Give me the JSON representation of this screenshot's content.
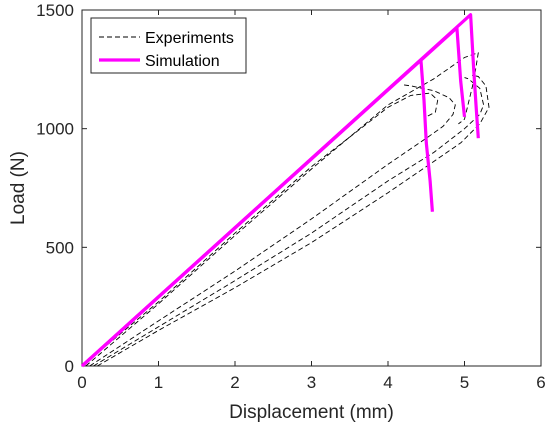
{
  "chart_data": {
    "type": "line",
    "title": "",
    "xlabel": "Displacement (mm)",
    "ylabel": "Load (N)",
    "xlim": [
      0,
      6
    ],
    "ylim": [
      0,
      1500
    ],
    "xticks": [
      "0",
      "1",
      "2",
      "3",
      "4",
      "5",
      "6"
    ],
    "yticks": [
      "0",
      "500",
      "1000",
      "1500"
    ],
    "grid": false,
    "legend_position": "top-left",
    "legend": [
      "Experiments",
      "Simulation"
    ],
    "series": [
      {
        "name": "Experiments",
        "style": "dashed",
        "color": "#000000",
        "curves": [
          [
            [
              0.0,
              0.0
            ],
            [
              1.0,
              270
            ],
            [
              2.0,
              560
            ],
            [
              3.0,
              840
            ],
            [
              3.5,
              965
            ],
            [
              4.0,
              1090
            ],
            [
              4.3,
              1140
            ],
            [
              4.55,
              1150
            ],
            [
              4.65,
              1120
            ],
            [
              4.62,
              1070
            ],
            [
              4.5,
              1050
            ]
          ],
          [
            [
              0.05,
              0.0
            ],
            [
              1.0,
              262
            ],
            [
              2.0,
              550
            ],
            [
              3.0,
              830
            ],
            [
              4.0,
              1100
            ],
            [
              4.6,
              1210
            ],
            [
              5.0,
              1300
            ],
            [
              5.18,
              1320
            ],
            [
              5.12,
              1200
            ],
            [
              5.0,
              1040
            ],
            [
              4.92,
              1020
            ]
          ],
          [
            [
              0.1,
              0.0
            ],
            [
              1.0,
              190
            ],
            [
              2.0,
              400
            ],
            [
              3.0,
              620
            ],
            [
              4.0,
              850
            ],
            [
              4.5,
              960
            ],
            [
              4.72,
              1010
            ],
            [
              4.85,
              1060
            ],
            [
              4.88,
              1100
            ],
            [
              4.8,
              1130
            ],
            [
              4.6,
              1160
            ],
            [
              4.3,
              1180
            ],
            [
              4.2,
              1185
            ]
          ],
          [
            [
              0.15,
              0.0
            ],
            [
              1.0,
              165
            ],
            [
              2.0,
              360
            ],
            [
              3.0,
              560
            ],
            [
              4.0,
              780
            ],
            [
              4.6,
              900
            ],
            [
              5.0,
              1000
            ],
            [
              5.2,
              1060
            ],
            [
              5.25,
              1100
            ],
            [
              5.2,
              1170
            ],
            [
              5.05,
              1210
            ],
            [
              5.0,
              1215
            ]
          ],
          [
            [
              0.2,
              0.0
            ],
            [
              1.0,
              150
            ],
            [
              2.0,
              330
            ],
            [
              3.0,
              520
            ],
            [
              4.0,
              730
            ],
            [
              4.5,
              840
            ],
            [
              4.95,
              940
            ],
            [
              5.2,
              1020
            ],
            [
              5.32,
              1090
            ],
            [
              5.28,
              1180
            ],
            [
              5.18,
              1220
            ],
            [
              5.1,
              1225
            ]
          ]
        ]
      },
      {
        "name": "Simulation",
        "style": "solid",
        "color": "#ff00ff",
        "curves": [
          [
            [
              0.0,
              0.0
            ],
            [
              4.43,
              1290
            ],
            [
              4.47,
              1120
            ],
            [
              4.5,
              940
            ],
            [
              4.55,
              780
            ],
            [
              4.58,
              650
            ]
          ],
          [
            [
              0.0,
              0.0
            ],
            [
              4.9,
              1425
            ],
            [
              4.95,
              1200
            ],
            [
              5.0,
              1050
            ]
          ],
          [
            [
              0.0,
              0.0
            ],
            [
              5.08,
              1480
            ],
            [
              5.12,
              1250
            ],
            [
              5.15,
              1100
            ],
            [
              5.18,
              960
            ]
          ]
        ]
      }
    ]
  }
}
